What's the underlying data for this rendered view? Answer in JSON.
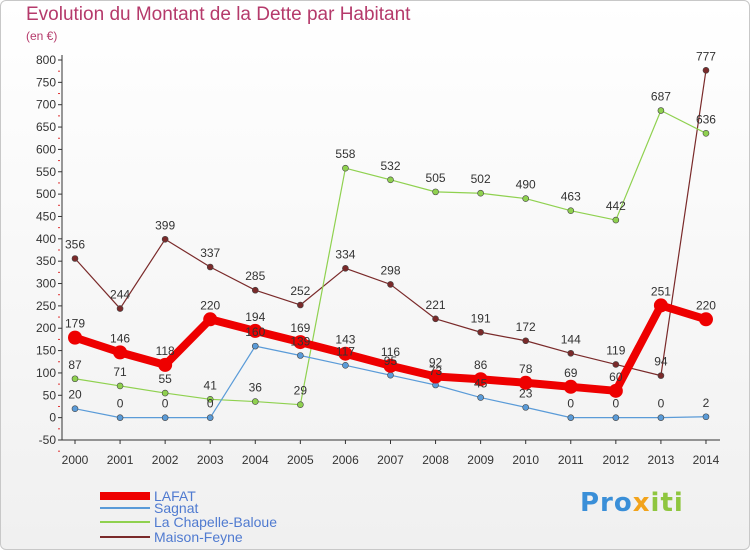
{
  "title": "Evolution du Montant de la Dette par Habitant",
  "unit": "(en €)",
  "logo": {
    "parts": [
      "Pro",
      "x",
      "iti"
    ],
    "colors": [
      "#3a8fd8",
      "#f2a31b",
      "#8fc63f"
    ]
  },
  "chart_data": {
    "type": "line",
    "categories": [
      "2000",
      "2001",
      "2002",
      "2003",
      "2004",
      "2005",
      "2006",
      "2007",
      "2008",
      "2009",
      "2010",
      "2011",
      "2012",
      "2013",
      "2014"
    ],
    "ylim": [
      -50,
      800
    ],
    "yticks": [
      -50,
      0,
      50,
      100,
      150,
      200,
      250,
      300,
      350,
      400,
      450,
      500,
      550,
      600,
      650,
      700,
      750,
      800
    ],
    "grid": false,
    "legend_position": "bottom-left",
    "series": [
      {
        "name": "LAFAT",
        "color": "#ee0000",
        "width": 8,
        "values": [
          179,
          146,
          118,
          220,
          194,
          169,
          143,
          116,
          92,
          86,
          78,
          69,
          60,
          251,
          220
        ],
        "labels": [
          "179",
          "146",
          "118",
          "220",
          "194",
          "169",
          "143",
          "116",
          "92",
          "86",
          "78",
          "69",
          "60",
          "251",
          "220"
        ]
      },
      {
        "name": "Sagnat",
        "color": "#5a9bd8",
        "width": 1.2,
        "values": [
          20,
          0,
          0,
          0,
          160,
          139,
          117,
          95,
          73,
          45,
          23,
          0,
          0,
          0,
          2
        ],
        "labels": [
          "20",
          "0",
          "0",
          "0",
          "160",
          "139",
          "117",
          "95",
          "73",
          "45",
          "23",
          "0",
          "0",
          "0",
          "2"
        ]
      },
      {
        "name": "La Chapelle-Baloue",
        "color": "#8fd14f",
        "width": 1.2,
        "values": [
          87,
          71,
          55,
          41,
          36,
          29,
          558,
          532,
          505,
          502,
          490,
          463,
          442,
          687,
          636
        ],
        "labels": [
          "87",
          "71",
          "55",
          "41",
          "36",
          "29",
          "558",
          "532",
          "505",
          "502",
          "490",
          "463",
          "442",
          "687",
          "636"
        ]
      },
      {
        "name": "Maison-Feyne",
        "color": "#7a2a2a",
        "width": 1.2,
        "values": [
          356,
          244,
          399,
          337,
          285,
          252,
          334,
          298,
          221,
          191,
          172,
          144,
          119,
          94,
          777
        ],
        "labels": [
          "356",
          "244",
          "399",
          "337",
          "285",
          "252",
          "334",
          "298",
          "221",
          "191",
          "172",
          "144",
          "119",
          "94",
          "777"
        ]
      }
    ]
  }
}
